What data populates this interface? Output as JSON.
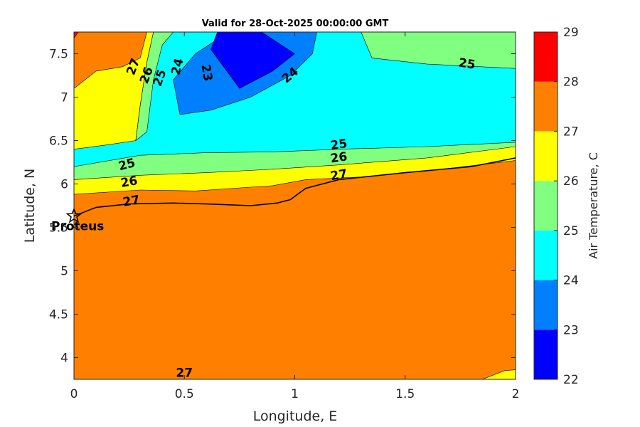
{
  "chart_data": {
    "type": "contour",
    "title": "Valid for 28-Oct-2025 00:00:00 GMT",
    "xlabel": "Longitude, E",
    "ylabel": "Latitude, N",
    "xlim": [
      0,
      2
    ],
    "ylim": [
      3.75,
      7.75
    ],
    "x_ticks": [
      "0",
      "0.5",
      "1",
      "1.5",
      "2"
    ],
    "y_ticks": [
      "4",
      "4.5",
      "5",
      "5.5",
      "6",
      "6.5",
      "7",
      "7.5"
    ],
    "colorbar": {
      "label": "Air Temperature, C",
      "levels": [
        22,
        23,
        24,
        25,
        26,
        27,
        28,
        29
      ],
      "tick_labels": [
        "22",
        "23",
        "24",
        "25",
        "26",
        "27",
        "28",
        "29"
      ],
      "colors": [
        "#0000ff",
        "#0080ff",
        "#00ffff",
        "#80ff80",
        "#ffff00",
        "#ff8000",
        "#ff0000",
        "#800000"
      ]
    },
    "temperature_bands": [
      {
        "range": [
          27,
          28
        ],
        "color": "#ff8000",
        "polygon": [
          [
            0,
            3.75
          ],
          [
            2,
            3.75
          ],
          [
            2,
            6.6
          ],
          [
            0,
            6.6
          ]
        ]
      },
      {
        "range": [
          26,
          27
        ],
        "color": "#ffff00",
        "polygon": [
          [
            0,
            5.88
          ],
          [
            0.3,
            5.93
          ],
          [
            0.55,
            5.92
          ],
          [
            0.9,
            5.98
          ],
          [
            1.05,
            6.05
          ],
          [
            1.3,
            6.08
          ],
          [
            1.6,
            6.15
          ],
          [
            2,
            6.27
          ],
          [
            2,
            6.6
          ],
          [
            0,
            6.6
          ]
        ]
      },
      {
        "range": [
          25,
          26
        ],
        "color": "#80ff80",
        "polygon": [
          [
            0,
            6.05
          ],
          [
            0.3,
            6.1
          ],
          [
            0.6,
            6.13
          ],
          [
            0.9,
            6.17
          ],
          [
            1.2,
            6.22
          ],
          [
            1.6,
            6.3
          ],
          [
            2,
            6.43
          ],
          [
            2,
            6.6
          ],
          [
            0,
            6.6
          ]
        ]
      },
      {
        "range": [
          24,
          25
        ],
        "color": "#00ffff",
        "polygon": [
          [
            0,
            6.2
          ],
          [
            0.3,
            6.33
          ],
          [
            0.6,
            6.36
          ],
          [
            0.9,
            6.37
          ],
          [
            1.2,
            6.4
          ],
          [
            1.6,
            6.43
          ],
          [
            2,
            6.48
          ],
          [
            2,
            7.75
          ],
          [
            0,
            7.75
          ]
        ]
      },
      {
        "range": [
          26,
          27
        ],
        "color": "#ffff00",
        "polygon": [
          [
            0,
            6.4
          ],
          [
            0.15,
            6.45
          ],
          [
            0.28,
            6.5
          ],
          [
            0.3,
            6.9
          ],
          [
            0.33,
            7.4
          ],
          [
            0.36,
            7.75
          ],
          [
            0,
            7.75
          ]
        ]
      },
      {
        "range": [
          25,
          26
        ],
        "color": "#80ff80",
        "polygon": [
          [
            0.28,
            6.5
          ],
          [
            0.33,
            6.6
          ],
          [
            0.36,
            7.2
          ],
          [
            0.4,
            7.6
          ],
          [
            0.45,
            7.75
          ],
          [
            0.36,
            7.75
          ],
          [
            0.33,
            7.4
          ],
          [
            0.3,
            6.9
          ]
        ]
      },
      {
        "range": [
          27,
          28
        ],
        "color": "#ff8000",
        "polygon": [
          [
            0,
            7.1
          ],
          [
            0.1,
            7.3
          ],
          [
            0.22,
            7.35
          ],
          [
            0.3,
            7.45
          ],
          [
            0.33,
            7.75
          ],
          [
            0,
            7.75
          ]
        ]
      },
      {
        "range": [
          23,
          24
        ],
        "color": "#0080ff",
        "polygon": [
          [
            0.48,
            6.8
          ],
          [
            0.45,
            7.2
          ],
          [
            0.55,
            7.5
          ],
          [
            0.7,
            7.75
          ],
          [
            1.1,
            7.75
          ],
          [
            1.08,
            7.5
          ],
          [
            0.98,
            7.25
          ],
          [
            0.8,
            7.0
          ],
          [
            0.62,
            6.85
          ]
        ]
      },
      {
        "range": [
          22,
          23
        ],
        "color": "#0000ff",
        "polygon": [
          [
            0.62,
            7.55
          ],
          [
            0.75,
            7.1
          ],
          [
            0.9,
            7.3
          ],
          [
            1.0,
            7.5
          ],
          [
            0.85,
            7.75
          ],
          [
            0.65,
            7.75
          ]
        ]
      },
      {
        "range": [
          25,
          26
        ],
        "color": "#80ff80",
        "polygon": [
          [
            1.3,
            7.75
          ],
          [
            1.35,
            7.45
          ],
          [
            1.6,
            7.38
          ],
          [
            2,
            7.33
          ],
          [
            2,
            7.75
          ]
        ]
      },
      {
        "range": [
          26,
          27
        ],
        "color": "#ffff00",
        "polygon": [
          [
            1.85,
            3.75
          ],
          [
            1.95,
            3.85
          ],
          [
            2,
            3.86
          ],
          [
            2,
            3.75
          ]
        ]
      },
      {
        "range": [
          28,
          29
        ],
        "color": "#ff0000",
        "polygon": [
          [
            0,
            7.68
          ],
          [
            0.02,
            7.75
          ],
          [
            0,
            7.75
          ]
        ]
      }
    ],
    "contour_labels": [
      {
        "text": "27",
        "x": 0.27,
        "y": 7.35,
        "angle": -70
      },
      {
        "text": "26",
        "x": 0.33,
        "y": 7.25,
        "angle": -70
      },
      {
        "text": "25",
        "x": 0.39,
        "y": 7.22,
        "angle": -70
      },
      {
        "text": "24",
        "x": 0.47,
        "y": 7.35,
        "angle": -75
      },
      {
        "text": "23",
        "x": 0.6,
        "y": 7.28,
        "angle": 80
      },
      {
        "text": "24",
        "x": 0.98,
        "y": 7.25,
        "angle": -40
      },
      {
        "text": "25",
        "x": 1.78,
        "y": 7.38,
        "angle": 8
      },
      {
        "text": "25",
        "x": 0.24,
        "y": 6.22,
        "angle": -15
      },
      {
        "text": "26",
        "x": 0.25,
        "y": 6.02,
        "angle": -10
      },
      {
        "text": "27",
        "x": 0.26,
        "y": 5.8,
        "angle": -10
      },
      {
        "text": "25",
        "x": 1.2,
        "y": 6.45,
        "angle": -8
      },
      {
        "text": "26",
        "x": 1.2,
        "y": 6.3,
        "angle": -8
      },
      {
        "text": "27",
        "x": 1.2,
        "y": 6.1,
        "angle": -10
      },
      {
        "text": "27",
        "x": 0.5,
        "y": 3.82,
        "angle": 0
      }
    ],
    "coastline": [
      [
        0,
        5.63
      ],
      [
        0.1,
        5.73
      ],
      [
        0.25,
        5.77
      ],
      [
        0.45,
        5.78
      ],
      [
        0.6,
        5.77
      ],
      [
        0.8,
        5.75
      ],
      [
        0.92,
        5.78
      ],
      [
        0.98,
        5.82
      ],
      [
        1.05,
        5.95
      ],
      [
        1.2,
        6.05
      ],
      [
        1.5,
        6.13
      ],
      [
        1.8,
        6.2
      ],
      [
        2,
        6.3
      ]
    ],
    "station": {
      "name": "Proteus",
      "lon": 0.0,
      "lat": 5.63
    }
  }
}
